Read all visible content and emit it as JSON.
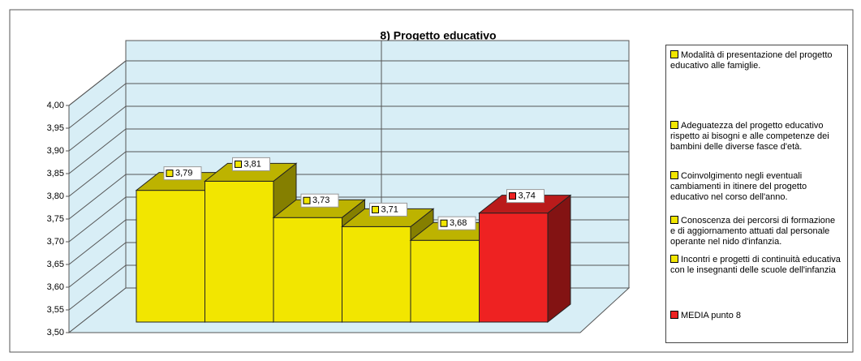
{
  "chart_data": {
    "type": "bar",
    "title": "8) Progetto educativo",
    "ylim": [
      3.5,
      4.0
    ],
    "yticks": [
      {
        "value": 3.5,
        "label": "3,50"
      },
      {
        "value": 3.55,
        "label": "3,55"
      },
      {
        "value": 3.6,
        "label": "3,60"
      },
      {
        "value": 3.65,
        "label": "3,65"
      },
      {
        "value": 3.7,
        "label": "3,70"
      },
      {
        "value": 3.75,
        "label": "3,75"
      },
      {
        "value": 3.8,
        "label": "3,80"
      },
      {
        "value": 3.85,
        "label": "3,85"
      },
      {
        "value": 3.9,
        "label": "3,90"
      },
      {
        "value": 3.95,
        "label": "3,95"
      },
      {
        "value": 4.0,
        "label": "4,00"
      }
    ],
    "grid": true,
    "legend": "right",
    "series": [
      {
        "name": "Modalità di presentazione del progetto educativo alle famiglie.",
        "color": "#f2e600",
        "values": [
          3.79
        ],
        "value_labels": [
          "3,79"
        ]
      },
      {
        "name": "Adeguatezza del progetto educativo rispetto ai bisogni e alle competenze dei bambini delle diverse fasce d'età.",
        "color": "#f2e600",
        "values": [
          3.81
        ],
        "value_labels": [
          "3,81"
        ]
      },
      {
        "name": "Coinvolgimento negli eventuali cambiamenti in itinere del progetto educativo nel corso dell'anno.",
        "color": "#f2e600",
        "values": [
          3.73
        ],
        "value_labels": [
          "3,73"
        ]
      },
      {
        "name": "Conoscenza dei percorsi di formazione e di aggiornamento attuati dal personale operante nel nido d'infanzia.",
        "color": "#f2e600",
        "values": [
          3.71
        ],
        "value_labels": [
          "3,71"
        ]
      },
      {
        "name": "Incontri e progetti di continuità educativa con le insegnanti delle scuole dell'infanzia",
        "color": "#f2e600",
        "values": [
          3.68
        ],
        "value_labels": [
          "3,68"
        ]
      },
      {
        "name": "MEDIA punto 8",
        "color": "#ee2222",
        "values": [
          3.74
        ],
        "value_labels": [
          "3,74"
        ]
      }
    ]
  }
}
